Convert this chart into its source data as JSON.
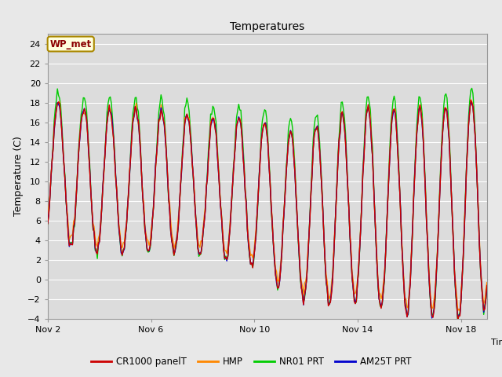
{
  "title": "Temperatures",
  "ylabel": "Temperature (C)",
  "xlabel": "Time",
  "ylim": [
    -4,
    25
  ],
  "yticks": [
    -4,
    -2,
    0,
    2,
    4,
    6,
    8,
    10,
    12,
    14,
    16,
    18,
    20,
    22,
    24
  ],
  "xtick_labels": [
    "Nov 2",
    "Nov 6",
    "Nov 10",
    "Nov 14",
    "Nov 18"
  ],
  "xtick_positions": [
    0,
    4,
    8,
    12,
    16
  ],
  "xlim": [
    0,
    17
  ],
  "bg_color": "#e8e8e8",
  "plot_bg_color": "#dcdcdc",
  "line_colors": {
    "CR1000 panelT": "#cc0000",
    "HMP": "#ff8800",
    "NR01 PRT": "#00cc00",
    "AM25T PRT": "#0000cc"
  },
  "annotation_text": "WP_met",
  "annotation_fg": "#8b0000",
  "annotation_bg": "#ffffdd",
  "annotation_border": "#aa8800",
  "figsize": [
    6.4,
    4.8
  ],
  "dpi": 100
}
